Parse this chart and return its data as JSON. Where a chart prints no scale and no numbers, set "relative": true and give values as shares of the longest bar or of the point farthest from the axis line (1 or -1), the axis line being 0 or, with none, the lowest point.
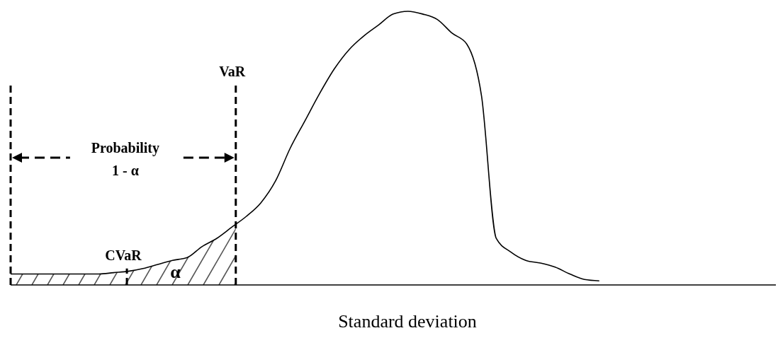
{
  "chart_data": {
    "type": "line",
    "relative": true,
    "xlabel": "Standard deviation",
    "categories": [
      null,
      null,
      null,
      null,
      null,
      null,
      null,
      null,
      null,
      null,
      null,
      null,
      null,
      null,
      null,
      null,
      null,
      null,
      null,
      null,
      null,
      null,
      null,
      null,
      null,
      null,
      null,
      null,
      null,
      null,
      null,
      null,
      null,
      null,
      null,
      null,
      null,
      null,
      null,
      null,
      null,
      null,
      null,
      null,
      null,
      null,
      null,
      null,
      null,
      null,
      null,
      null,
      null
    ],
    "series": [
      {
        "color": "#000000",
        "values": [
          0.04,
          0.04,
          0.04,
          0.04,
          0.04,
          0.04,
          0.04,
          0.045,
          0.05,
          0.06,
          0.075,
          0.09,
          0.1,
          0.14,
          0.17,
          0.21,
          0.25,
          0.3,
          0.38,
          0.5,
          0.6,
          0.7,
          0.79,
          0.86,
          0.91,
          0.95,
          0.99,
          1,
          0.99,
          0.97,
          0.92,
          0.88,
          0.69,
          0.17,
          0.12,
          0.09,
          0.08,
          0.065,
          0.04,
          0.02,
          0.015,
          null,
          null,
          null,
          null,
          null,
          null,
          null,
          null,
          null,
          null,
          null,
          null
        ]
      }
    ],
    "annotations": [
      "VaR",
      "CVaR",
      "α",
      "Probability",
      "1 - α"
    ],
    "line_style": "solid"
  }
}
